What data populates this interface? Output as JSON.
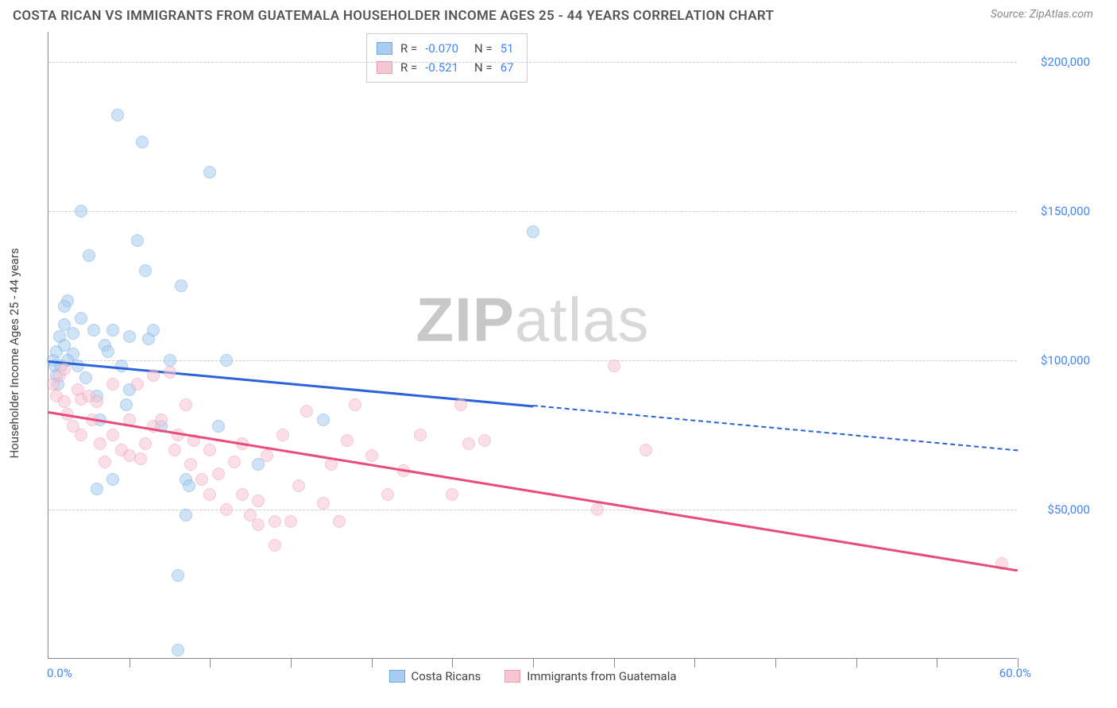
{
  "title": "COSTA RICAN VS IMMIGRANTS FROM GUATEMALA HOUSEHOLDER INCOME AGES 25 - 44 YEARS CORRELATION CHART",
  "source_prefix": "Source: ",
  "source_name": "ZipAtlas.com",
  "ylabel": "Householder Income Ages 25 - 44 years",
  "watermark_a": "ZIP",
  "watermark_b": "atlas",
  "chart": {
    "type": "scatter",
    "xlim": [
      0,
      60
    ],
    "ylim": [
      0,
      210000
    ],
    "xtick_labels": [
      "0.0%",
      "60.0%"
    ],
    "ytick_values": [
      50000,
      100000,
      150000,
      200000
    ],
    "ytick_labels": [
      "$50,000",
      "$100,000",
      "$150,000",
      "$200,000"
    ],
    "xtick_marks": [
      5,
      10,
      15,
      20,
      25,
      30,
      35,
      40,
      45,
      50,
      55,
      60
    ],
    "grid_color": "#cccccc",
    "axis_color": "#888888",
    "background_color": "#ffffff",
    "label_color": "#4285f4",
    "point_radius": 8,
    "point_opacity": 0.55,
    "series": [
      {
        "name": "Costa Ricans",
        "color_fill": "#a9cdf0",
        "color_stroke": "#6ca7e0",
        "trend_color": "#2962d9",
        "r": "-0.070",
        "n": "51",
        "trend": {
          "x1": 0,
          "y1": 100000,
          "x2": 30,
          "y2": 85000,
          "dash_x2": 60,
          "dash_y2": 70000
        },
        "points": [
          [
            0.3,
            100000
          ],
          [
            0.4,
            98000
          ],
          [
            0.5,
            95000
          ],
          [
            0.5,
            103000
          ],
          [
            0.7,
            108000
          ],
          [
            0.6,
            92000
          ],
          [
            0.8,
            98000
          ],
          [
            1.0,
            112000
          ],
          [
            1.0,
            105000
          ],
          [
            1.2,
            120000
          ],
          [
            1.0,
            118000
          ],
          [
            1.5,
            102000
          ],
          [
            1.5,
            109000
          ],
          [
            2.0,
            114000
          ],
          [
            1.8,
            98000
          ],
          [
            2.0,
            150000
          ],
          [
            2.5,
            135000
          ],
          [
            2.8,
            110000
          ],
          [
            3.0,
            57000
          ],
          [
            3.2,
            80000
          ],
          [
            3.5,
            105000
          ],
          [
            3.7,
            103000
          ],
          [
            4.0,
            60000
          ],
          [
            4.0,
            110000
          ],
          [
            4.3,
            182000
          ],
          [
            4.5,
            98000
          ],
          [
            5.0,
            108000
          ],
          [
            5.0,
            90000
          ],
          [
            5.5,
            140000
          ],
          [
            5.8,
            173000
          ],
          [
            6.0,
            130000
          ],
          [
            6.2,
            107000
          ],
          [
            6.5,
            110000
          ],
          [
            7.0,
            78000
          ],
          [
            7.5,
            100000
          ],
          [
            8.0,
            3000
          ],
          [
            8.0,
            28000
          ],
          [
            8.2,
            125000
          ],
          [
            8.5,
            60000
          ],
          [
            8.5,
            48000
          ],
          [
            8.7,
            58000
          ],
          [
            10.0,
            163000
          ],
          [
            10.5,
            78000
          ],
          [
            11.0,
            100000
          ],
          [
            13.0,
            65000
          ],
          [
            17.0,
            80000
          ],
          [
            30.0,
            143000
          ],
          [
            1.2,
            100000
          ],
          [
            2.3,
            94000
          ],
          [
            3.0,
            88000
          ],
          [
            4.8,
            85000
          ]
        ]
      },
      {
        "name": "Immigrants from Guatemala",
        "color_fill": "#f7c6d3",
        "color_stroke": "#ec9ab2",
        "trend_color": "#e94b7a",
        "r": "-0.521",
        "n": "67",
        "trend": {
          "x1": 0,
          "y1": 83000,
          "x2": 60,
          "y2": 30000
        },
        "points": [
          [
            0.3,
            92000
          ],
          [
            0.5,
            88000
          ],
          [
            0.7,
            95000
          ],
          [
            1.0,
            97000
          ],
          [
            1.0,
            86000
          ],
          [
            1.2,
            82000
          ],
          [
            1.5,
            78000
          ],
          [
            1.8,
            90000
          ],
          [
            2.0,
            87000
          ],
          [
            2.0,
            75000
          ],
          [
            2.5,
            88000
          ],
          [
            2.7,
            80000
          ],
          [
            3.0,
            86000
          ],
          [
            3.2,
            72000
          ],
          [
            3.5,
            66000
          ],
          [
            4.0,
            75000
          ],
          [
            4.0,
            92000
          ],
          [
            4.5,
            70000
          ],
          [
            5.0,
            80000
          ],
          [
            5.0,
            68000
          ],
          [
            5.5,
            92000
          ],
          [
            5.7,
            67000
          ],
          [
            6.0,
            72000
          ],
          [
            6.5,
            95000
          ],
          [
            6.5,
            78000
          ],
          [
            7.0,
            80000
          ],
          [
            7.5,
            96000
          ],
          [
            7.8,
            70000
          ],
          [
            8.0,
            75000
          ],
          [
            8.5,
            85000
          ],
          [
            8.8,
            65000
          ],
          [
            9.0,
            73000
          ],
          [
            9.5,
            60000
          ],
          [
            10.0,
            55000
          ],
          [
            10.0,
            70000
          ],
          [
            10.5,
            62000
          ],
          [
            11.0,
            50000
          ],
          [
            11.5,
            66000
          ],
          [
            12.0,
            72000
          ],
          [
            12.5,
            48000
          ],
          [
            13.0,
            53000
          ],
          [
            13.5,
            68000
          ],
          [
            14.0,
            38000
          ],
          [
            14.5,
            75000
          ],
          [
            15.0,
            46000
          ],
          [
            15.5,
            58000
          ],
          [
            16.0,
            83000
          ],
          [
            17.0,
            52000
          ],
          [
            17.5,
            65000
          ],
          [
            18.0,
            46000
          ],
          [
            18.5,
            73000
          ],
          [
            19.0,
            85000
          ],
          [
            20.0,
            68000
          ],
          [
            21.0,
            55000
          ],
          [
            22.0,
            63000
          ],
          [
            23.0,
            75000
          ],
          [
            25.0,
            55000
          ],
          [
            25.5,
            85000
          ],
          [
            26.0,
            72000
          ],
          [
            27.0,
            73000
          ],
          [
            34.0,
            50000
          ],
          [
            35.0,
            98000
          ],
          [
            37.0,
            70000
          ],
          [
            14.0,
            46000
          ],
          [
            12.0,
            55000
          ],
          [
            59.0,
            32000
          ],
          [
            13.0,
            45000
          ]
        ]
      }
    ],
    "legend_top": {
      "r_label": "R =",
      "n_label": "N ="
    },
    "legend_bottom": [
      {
        "label": "Costa Ricans",
        "fill": "#a9cdf0",
        "stroke": "#6ca7e0"
      },
      {
        "label": "Immigrants from Guatemala",
        "fill": "#f7c6d3",
        "stroke": "#ec9ab2"
      }
    ]
  }
}
